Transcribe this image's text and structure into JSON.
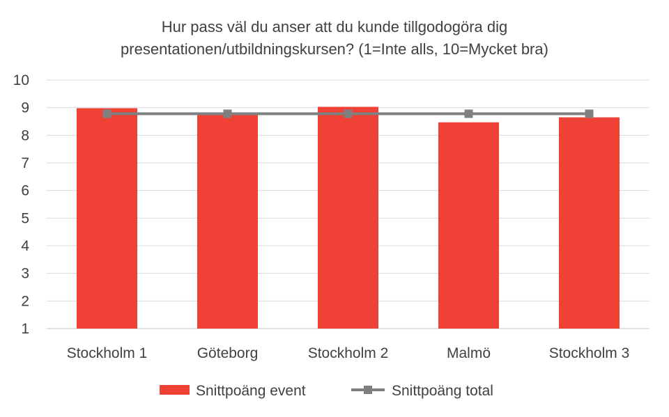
{
  "chart_data": {
    "type": "bar",
    "title": [
      "Hur pass väl du anser att du kunde tillgodogöra dig",
      "presentationen/utbildningskursen? (1=Inte alls, 10=Mycket bra)"
    ],
    "categories": [
      "Stockholm 1",
      "Göteborg",
      "Stockholm 2",
      "Malmö",
      "Stockholm 3"
    ],
    "series": [
      {
        "name": "Snittpoäng event",
        "kind": "bar",
        "values": [
          8.98,
          8.75,
          9.03,
          8.47,
          8.65
        ],
        "color": "#EF4136"
      },
      {
        "name": "Snittpoäng total",
        "kind": "line",
        "values": [
          8.78,
          8.78,
          8.78,
          8.78,
          8.78
        ],
        "color": "#808080",
        "marker": "square"
      }
    ],
    "ylim": [
      1,
      10
    ],
    "yticks": [
      "1",
      "2",
      "3",
      "4",
      "5",
      "6",
      "7",
      "8",
      "9",
      "10"
    ],
    "grid": true,
    "legend_position": "bottom"
  }
}
